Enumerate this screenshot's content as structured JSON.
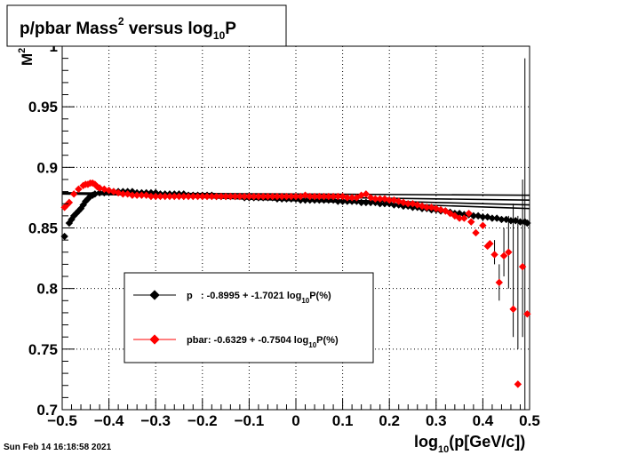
{
  "chart_data": {
    "type": "scatter",
    "title": {
      "text": "p/pbar Mass",
      "sup": "2",
      "mid": " versus log",
      "sub": "10",
      "tail": "P"
    },
    "xlabel": {
      "pre": "log",
      "sub": "10",
      "post": "(p[GeV/c])"
    },
    "ylabel": {
      "text": "M",
      "sup": "2"
    },
    "xlim": [
      -0.5,
      0.5
    ],
    "ylim": [
      0.7,
      1.0
    ],
    "x_ticks": [
      "−0.5",
      "−0.4",
      "−0.3",
      "−0.2",
      "−0.1",
      "0",
      "0.1",
      "0.2",
      "0.3",
      "0.4",
      "0.5"
    ],
    "y_ticks": [
      "0.7",
      "0.75",
      "0.8",
      "0.85",
      "0.9",
      "0.95",
      "1"
    ],
    "grid": true,
    "timestamp": "Sun Feb 14 16:18:58 2021",
    "legend_position": "center-left",
    "series": [
      {
        "name": "p",
        "legend": {
          "pre": "p   : -0.8995 + -1.7021 log",
          "sub": "10",
          "post": "P(%)"
        },
        "color": "#000000",
        "fit_lines": [
          [
            0.879,
            0.866
          ],
          [
            0.879,
            0.869
          ],
          [
            0.878,
            0.873
          ],
          [
            0.879,
            0.877
          ]
        ],
        "points": [
          [
            -0.495,
            0.843
          ],
          [
            -0.485,
            0.854
          ],
          [
            -0.48,
            0.857
          ],
          [
            -0.475,
            0.86
          ],
          [
            -0.47,
            0.862
          ],
          [
            -0.465,
            0.864
          ],
          [
            -0.46,
            0.866
          ],
          [
            -0.455,
            0.869
          ],
          [
            -0.45,
            0.872
          ],
          [
            -0.445,
            0.874
          ],
          [
            -0.44,
            0.876
          ],
          [
            -0.435,
            0.877
          ],
          [
            -0.43,
            0.878
          ],
          [
            -0.42,
            0.879
          ],
          [
            -0.41,
            0.879
          ],
          [
            -0.4,
            0.88
          ],
          [
            -0.39,
            0.88
          ],
          [
            -0.38,
            0.88
          ],
          [
            -0.37,
            0.88
          ],
          [
            -0.36,
            0.88
          ],
          [
            -0.35,
            0.88
          ],
          [
            -0.34,
            0.879
          ],
          [
            -0.33,
            0.879
          ],
          [
            -0.32,
            0.879
          ],
          [
            -0.31,
            0.879
          ],
          [
            -0.3,
            0.879
          ],
          [
            -0.29,
            0.878
          ],
          [
            -0.28,
            0.878
          ],
          [
            -0.27,
            0.878
          ],
          [
            -0.26,
            0.878
          ],
          [
            -0.25,
            0.878
          ],
          [
            -0.24,
            0.878
          ],
          [
            -0.23,
            0.877
          ],
          [
            -0.22,
            0.877
          ],
          [
            -0.21,
            0.877
          ],
          [
            -0.2,
            0.877
          ],
          [
            -0.19,
            0.877
          ],
          [
            -0.18,
            0.877
          ],
          [
            -0.17,
            0.876
          ],
          [
            -0.16,
            0.876
          ],
          [
            -0.15,
            0.876
          ],
          [
            -0.14,
            0.876
          ],
          [
            -0.13,
            0.876
          ],
          [
            -0.12,
            0.876
          ],
          [
            -0.11,
            0.875
          ],
          [
            -0.1,
            0.875
          ],
          [
            -0.09,
            0.875
          ],
          [
            -0.08,
            0.875
          ],
          [
            -0.07,
            0.875
          ],
          [
            -0.06,
            0.875
          ],
          [
            -0.05,
            0.875
          ],
          [
            -0.04,
            0.874
          ],
          [
            -0.03,
            0.874
          ],
          [
            -0.02,
            0.874
          ],
          [
            -0.01,
            0.874
          ],
          [
            0.0,
            0.874
          ],
          [
            0.01,
            0.873
          ],
          [
            0.02,
            0.873
          ],
          [
            0.03,
            0.873
          ],
          [
            0.04,
            0.873
          ],
          [
            0.05,
            0.873
          ],
          [
            0.06,
            0.873
          ],
          [
            0.07,
            0.873
          ],
          [
            0.08,
            0.873
          ],
          [
            0.09,
            0.872
          ],
          [
            0.1,
            0.872
          ],
          [
            0.11,
            0.872
          ],
          [
            0.12,
            0.872
          ],
          [
            0.13,
            0.872
          ],
          [
            0.14,
            0.871
          ],
          [
            0.15,
            0.871
          ],
          [
            0.16,
            0.871
          ],
          [
            0.17,
            0.871
          ],
          [
            0.18,
            0.87
          ],
          [
            0.19,
            0.87
          ],
          [
            0.2,
            0.87
          ],
          [
            0.21,
            0.869
          ],
          [
            0.22,
            0.869
          ],
          [
            0.23,
            0.868
          ],
          [
            0.24,
            0.868
          ],
          [
            0.25,
            0.867
          ],
          [
            0.26,
            0.867
          ],
          [
            0.27,
            0.866
          ],
          [
            0.28,
            0.866
          ],
          [
            0.29,
            0.865
          ],
          [
            0.3,
            0.865
          ],
          [
            0.31,
            0.864
          ],
          [
            0.32,
            0.864
          ],
          [
            0.33,
            0.863
          ],
          [
            0.34,
            0.862
          ],
          [
            0.35,
            0.862
          ],
          [
            0.36,
            0.861
          ],
          [
            0.37,
            0.861
          ],
          [
            0.38,
            0.86
          ],
          [
            0.39,
            0.86
          ],
          [
            0.4,
            0.859
          ],
          [
            0.41,
            0.859
          ],
          [
            0.42,
            0.858
          ],
          [
            0.43,
            0.858
          ],
          [
            0.44,
            0.857
          ],
          [
            0.45,
            0.857
          ],
          [
            0.46,
            0.856
          ],
          [
            0.47,
            0.856
          ],
          [
            0.48,
            0.855
          ],
          [
            0.49,
            0.855
          ],
          [
            0.495,
            0.854
          ]
        ]
      },
      {
        "name": "pbar",
        "legend": {
          "pre": "pbar: -0.6329 + -0.7504 log",
          "sub": "10",
          "post": "P(%)"
        },
        "color": "#ff0000",
        "fit_lines": [],
        "points": [
          [
            -0.495,
            0.867
          ],
          [
            -0.49,
            0.869
          ],
          [
            -0.485,
            0.871
          ],
          [
            -0.475,
            0.878
          ],
          [
            -0.465,
            0.882
          ],
          [
            -0.455,
            0.885
          ],
          [
            -0.45,
            0.886
          ],
          [
            -0.445,
            0.886
          ],
          [
            -0.44,
            0.887
          ],
          [
            -0.435,
            0.887
          ],
          [
            -0.43,
            0.886
          ],
          [
            -0.425,
            0.884
          ],
          [
            -0.42,
            0.883
          ],
          [
            -0.41,
            0.882
          ],
          [
            -0.4,
            0.881
          ],
          [
            -0.39,
            0.88
          ],
          [
            -0.38,
            0.879
          ],
          [
            -0.37,
            0.878
          ],
          [
            -0.36,
            0.878
          ],
          [
            -0.35,
            0.877
          ],
          [
            -0.34,
            0.877
          ],
          [
            -0.33,
            0.877
          ],
          [
            -0.32,
            0.877
          ],
          [
            -0.31,
            0.876
          ],
          [
            -0.3,
            0.876
          ],
          [
            -0.29,
            0.876
          ],
          [
            -0.28,
            0.876
          ],
          [
            -0.27,
            0.876
          ],
          [
            -0.26,
            0.876
          ],
          [
            -0.25,
            0.876
          ],
          [
            -0.24,
            0.876
          ],
          [
            -0.23,
            0.876
          ],
          [
            -0.22,
            0.876
          ],
          [
            -0.21,
            0.876
          ],
          [
            -0.2,
            0.876
          ],
          [
            -0.19,
            0.876
          ],
          [
            -0.18,
            0.876
          ],
          [
            -0.17,
            0.876
          ],
          [
            -0.16,
            0.876
          ],
          [
            -0.15,
            0.876
          ],
          [
            -0.14,
            0.876
          ],
          [
            -0.13,
            0.876
          ],
          [
            -0.12,
            0.876
          ],
          [
            -0.11,
            0.876
          ],
          [
            -0.1,
            0.876
          ],
          [
            -0.09,
            0.876
          ],
          [
            -0.08,
            0.876
          ],
          [
            -0.07,
            0.876
          ],
          [
            -0.06,
            0.876
          ],
          [
            -0.05,
            0.876
          ],
          [
            -0.04,
            0.876
          ],
          [
            -0.03,
            0.876
          ],
          [
            -0.02,
            0.876
          ],
          [
            -0.01,
            0.876
          ],
          [
            0.0,
            0.876
          ],
          [
            0.01,
            0.876
          ],
          [
            0.02,
            0.877
          ],
          [
            0.03,
            0.876
          ],
          [
            0.04,
            0.876
          ],
          [
            0.05,
            0.876
          ],
          [
            0.06,
            0.876
          ],
          [
            0.07,
            0.876
          ],
          [
            0.08,
            0.876
          ],
          [
            0.09,
            0.876
          ],
          [
            0.1,
            0.876
          ],
          [
            0.11,
            0.875
          ],
          [
            0.12,
            0.875
          ],
          [
            0.13,
            0.875
          ],
          [
            0.14,
            0.877
          ],
          [
            0.15,
            0.878
          ],
          [
            0.16,
            0.875
          ],
          [
            0.17,
            0.874
          ],
          [
            0.18,
            0.874
          ],
          [
            0.19,
            0.874
          ],
          [
            0.2,
            0.873
          ],
          [
            0.21,
            0.873
          ],
          [
            0.22,
            0.872
          ],
          [
            0.23,
            0.871
          ],
          [
            0.24,
            0.87
          ],
          [
            0.25,
            0.87
          ],
          [
            0.26,
            0.869
          ],
          [
            0.27,
            0.868
          ],
          [
            0.28,
            0.867
          ],
          [
            0.29,
            0.867
          ],
          [
            0.3,
            0.866
          ],
          [
            0.31,
            0.865
          ],
          [
            0.32,
            0.864
          ],
          [
            0.33,
            0.862
          ],
          [
            0.34,
            0.86
          ],
          [
            0.35,
            0.858
          ],
          [
            0.36,
            0.858
          ],
          [
            0.37,
            0.862
          ],
          [
            0.375,
            0.855
          ],
          [
            0.385,
            0.846
          ],
          [
            0.4,
            0.852
          ],
          [
            0.41,
            0.835
          ],
          [
            0.415,
            0.837
          ],
          [
            0.425,
            0.828
          ],
          [
            0.435,
            0.805
          ],
          [
            0.445,
            0.827
          ],
          [
            0.455,
            0.83
          ],
          [
            0.465,
            0.783
          ],
          [
            0.475,
            0.721
          ],
          [
            0.485,
            0.818
          ],
          [
            0.495,
            0.779
          ]
        ]
      }
    ],
    "error_bars": [
      {
        "x": 0.485,
        "lo": 0.76,
        "hi": 0.89
      },
      {
        "x": 0.49,
        "lo": 0.7,
        "hi": 0.99
      },
      {
        "x": 0.475,
        "lo": 0.75,
        "hi": 0.86
      },
      {
        "x": 0.465,
        "lo": 0.76,
        "hi": 0.87
      },
      {
        "x": 0.455,
        "lo": 0.8,
        "hi": 0.86
      },
      {
        "x": 0.445,
        "lo": 0.81,
        "hi": 0.85
      },
      {
        "x": 0.435,
        "lo": 0.79,
        "hi": 0.82
      },
      {
        "x": 0.425,
        "lo": 0.82,
        "hi": 0.84
      }
    ]
  }
}
